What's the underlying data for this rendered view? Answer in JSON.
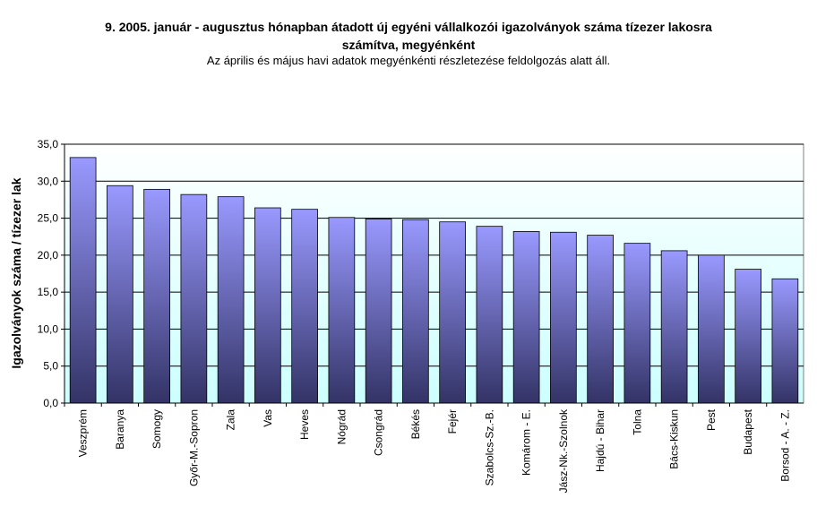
{
  "title": {
    "line1": "9.   2005. január - augusztus hónapban átadott új egyéni vállalkozói  igazolványok száma tízezer lakosra",
    "line2": "számítva, megyénként",
    "subtitle": "Az április és május havi adatok megyénkénti részletezése feldolgozás alatt áll."
  },
  "chart_data": {
    "type": "bar",
    "title": "9.   2005. január - augusztus hónapban átadott új egyéni vállalkozói  igazolványok száma tízezer lakosra számítva, megyénként",
    "subtitle": "Az április és május havi adatok megyénkénti részletezése feldolgozás alatt áll.",
    "xlabel": "",
    "ylabel": "Igazolványok száma / tízezer lak",
    "ylim": [
      0,
      35
    ],
    "yticks": [
      "0,0",
      "5,0",
      "10,0",
      "15,0",
      "20,0",
      "25,0",
      "30,0",
      "35,0"
    ],
    "grid": true,
    "categories": [
      "Veszprém",
      "Baranya",
      "Somogy",
      "Győr-M.-Sopron",
      "Zala",
      "Vas",
      "Heves",
      "Nógrád",
      "Csongrád",
      "Békés",
      "Fejér",
      "Szabolcs-Sz.-B.",
      "Komárom - E.",
      "Jász-Nk.-Szolnok",
      "Hajdú - Bihar",
      "Tolna",
      "Bács-Kiskun",
      "Pest",
      "Budapest",
      "Borsod - A. - Z."
    ],
    "values": [
      33.2,
      29.4,
      28.9,
      28.2,
      27.9,
      26.4,
      26.2,
      25.1,
      24.9,
      24.8,
      24.5,
      23.9,
      23.2,
      23.1,
      22.7,
      21.6,
      20.6,
      20.0,
      18.1,
      16.8
    ],
    "colors": {
      "bar_top": "#9999ff",
      "bar_bottom": "#333366",
      "plot_top": "#ffffff",
      "plot_bottom": "#ccffff"
    }
  }
}
